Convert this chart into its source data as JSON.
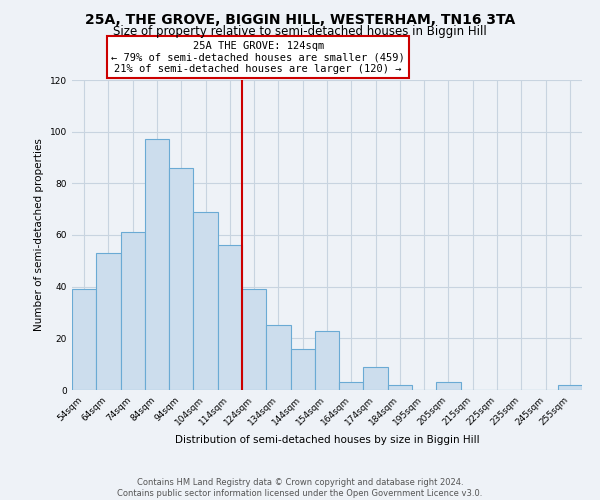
{
  "title": "25A, THE GROVE, BIGGIN HILL, WESTERHAM, TN16 3TA",
  "subtitle": "Size of property relative to semi-detached houses in Biggin Hill",
  "xlabel": "Distribution of semi-detached houses by size in Biggin Hill",
  "ylabel": "Number of semi-detached properties",
  "bar_labels": [
    "54sqm",
    "64sqm",
    "74sqm",
    "84sqm",
    "94sqm",
    "104sqm",
    "114sqm",
    "124sqm",
    "134sqm",
    "144sqm",
    "154sqm",
    "164sqm",
    "174sqm",
    "184sqm",
    "195sqm",
    "205sqm",
    "215sqm",
    "225sqm",
    "235sqm",
    "245sqm",
    "255sqm"
  ],
  "bar_values": [
    39,
    53,
    61,
    97,
    86,
    69,
    56,
    39,
    25,
    16,
    23,
    3,
    9,
    2,
    0,
    3,
    0,
    0,
    0,
    0,
    2
  ],
  "bar_color": "#ccdded",
  "bar_edge_color": "#6aaad4",
  "vline_x_idx": 7,
  "vline_color": "#cc0000",
  "annotation_title": "25A THE GROVE: 124sqm",
  "annotation_line1": "← 79% of semi-detached houses are smaller (459)",
  "annotation_line2": "21% of semi-detached houses are larger (120) →",
  "annotation_box_color": "#ffffff",
  "annotation_box_edge": "#cc0000",
  "ylim": [
    0,
    120
  ],
  "yticks": [
    0,
    20,
    40,
    60,
    80,
    100,
    120
  ],
  "footer1": "Contains HM Land Registry data © Crown copyright and database right 2024.",
  "footer2": "Contains public sector information licensed under the Open Government Licence v3.0.",
  "bg_color": "#eef2f7",
  "plot_bg_color": "#eef2f7",
  "grid_color": "#c8d4e0",
  "title_fontsize": 10,
  "subtitle_fontsize": 8.5,
  "label_fontsize": 7.5,
  "tick_fontsize": 6.5,
  "footer_fontsize": 6.0,
  "annot_fontsize": 7.5
}
